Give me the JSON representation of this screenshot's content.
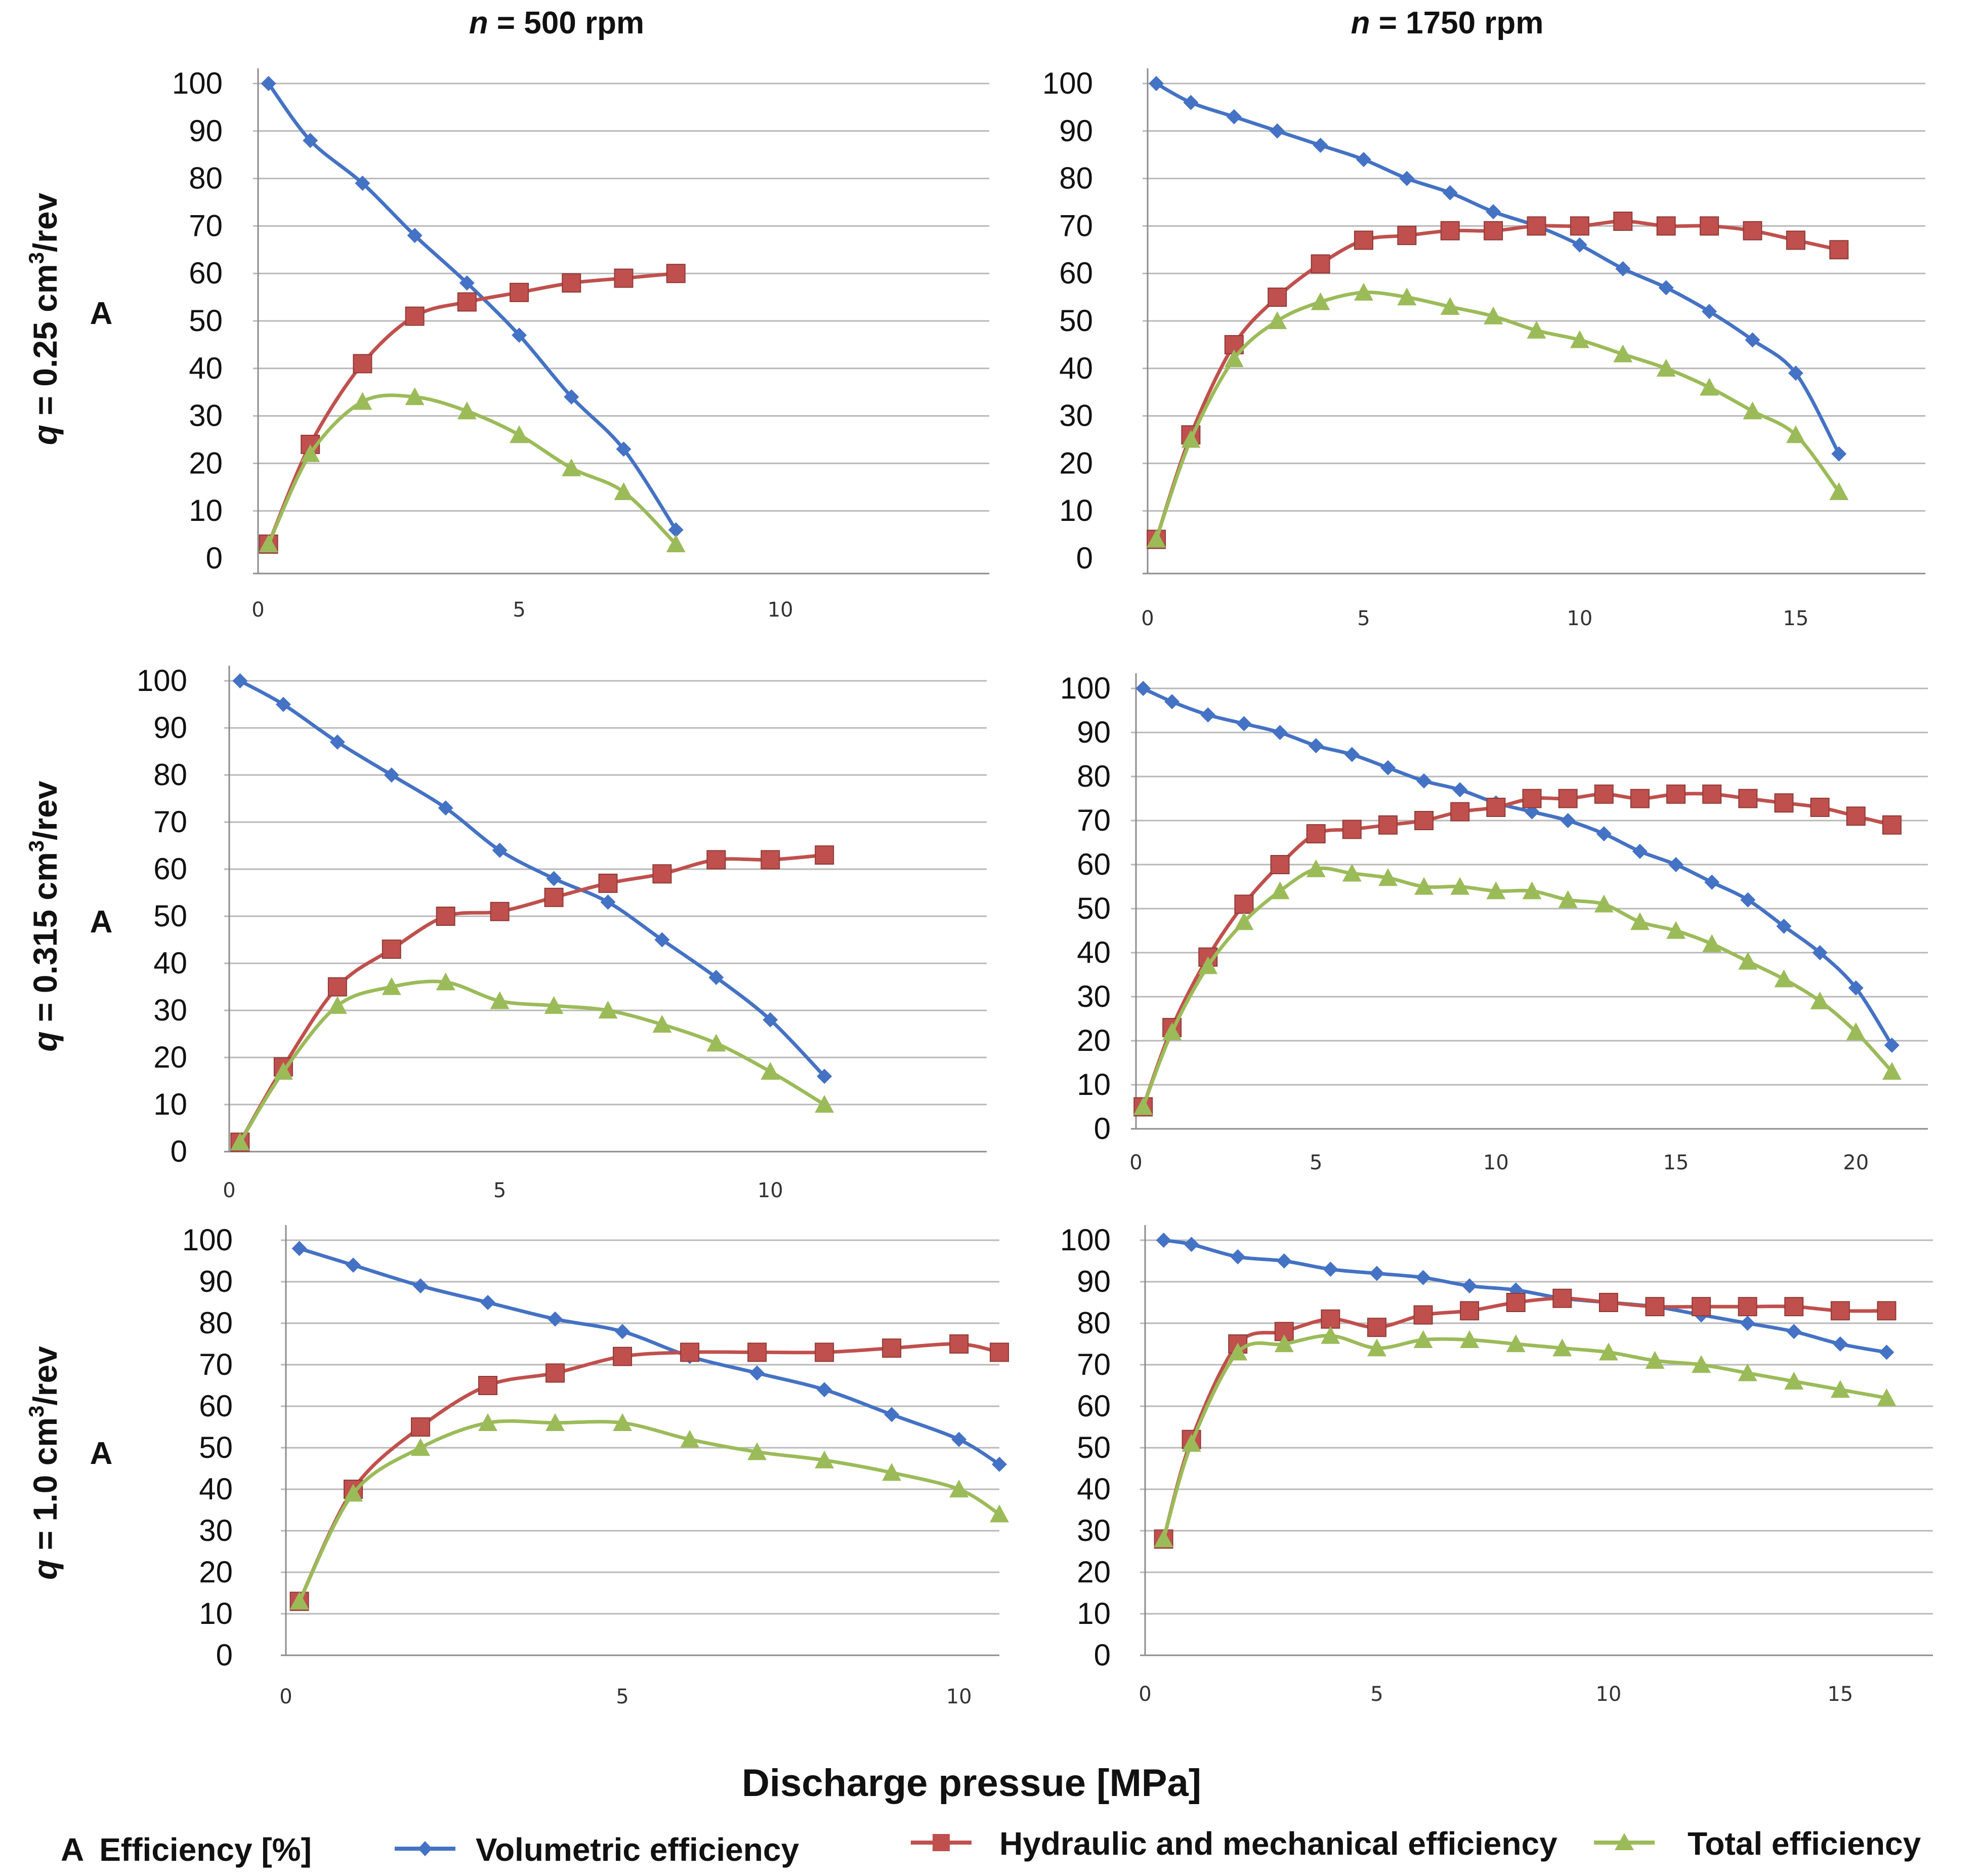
{
  "figure": {
    "col_titles": [
      {
        "var": "n",
        "rest": " = 500 rpm"
      },
      {
        "var": "n",
        "rest": " = 1750 rpm"
      }
    ],
    "row_titles": [
      {
        "var": "q",
        "rest": " = 0.25 cm",
        "sup": "3",
        "unit": "/rev"
      },
      {
        "var": "q",
        "rest": " = 0.315 cm",
        "sup": "3",
        "unit": "/rev"
      },
      {
        "var": "q",
        "rest": " = 1.0 cm",
        "sup": "3",
        "unit": "/rev"
      }
    ],
    "row_axis_letter": "A",
    "xlabel": "Discharge pressue [MPa]",
    "legend": {
      "axis_key": "A",
      "axis_meaning": "Efficiency [%]",
      "series": [
        "Volumetric efficiency",
        "Hydraulic and mechanical efficiency",
        "Total efficiency"
      ]
    },
    "colors": {
      "volumetric": "#4472c4",
      "hydraulic": "#c0504d",
      "total": "#9bbb59"
    },
    "markers": {
      "volumetric": "diamond",
      "hydraulic": "square",
      "total": "triangle"
    }
  },
  "chart_data": [
    {
      "type": "line",
      "row": 0,
      "col": 0,
      "xlim": [
        0,
        14
      ],
      "ylim": [
        0,
        100
      ],
      "xticks": [
        0,
        5,
        10
      ],
      "yticks": [
        0,
        10,
        20,
        30,
        40,
        50,
        60,
        70,
        80,
        90,
        100
      ],
      "series": [
        {
          "key": "volumetric",
          "x": [
            0.2,
            1,
            2,
            3,
            4,
            5,
            6,
            7,
            8
          ],
          "y": [
            100,
            88,
            79,
            68,
            58,
            47,
            34,
            23,
            6
          ]
        },
        {
          "key": "hydraulic",
          "x": [
            0.2,
            1,
            2,
            3,
            4,
            5,
            6,
            7,
            8
          ],
          "y": [
            3,
            24,
            41,
            51,
            54,
            56,
            58,
            59,
            60
          ]
        },
        {
          "key": "total",
          "x": [
            0.2,
            1,
            2,
            3,
            4,
            5,
            6,
            7,
            8
          ],
          "y": [
            3,
            22,
            33,
            34,
            31,
            26,
            19,
            14,
            3
          ]
        }
      ]
    },
    {
      "type": "line",
      "row": 0,
      "col": 1,
      "xlim": [
        0,
        18
      ],
      "ylim": [
        0,
        100
      ],
      "xticks": [
        0,
        5,
        10,
        15
      ],
      "yticks": [
        0,
        10,
        20,
        30,
        40,
        50,
        60,
        70,
        80,
        90,
        100
      ],
      "series": [
        {
          "key": "volumetric",
          "x": [
            0.2,
            1,
            2,
            3,
            4,
            5,
            6,
            7,
            8,
            9,
            10,
            11,
            12,
            13,
            14,
            15,
            16
          ],
          "y": [
            100,
            96,
            93,
            90,
            87,
            84,
            80,
            77,
            73,
            70,
            66,
            61,
            57,
            52,
            46,
            39,
            22
          ]
        },
        {
          "key": "hydraulic",
          "x": [
            0.2,
            1,
            2,
            3,
            4,
            5,
            6,
            7,
            8,
            9,
            10,
            11,
            12,
            13,
            14,
            15,
            16
          ],
          "y": [
            4,
            26,
            45,
            55,
            62,
            67,
            68,
            69,
            69,
            70,
            70,
            71,
            70,
            70,
            69,
            67,
            65
          ]
        },
        {
          "key": "total",
          "x": [
            0.2,
            1,
            2,
            3,
            4,
            5,
            6,
            7,
            8,
            9,
            10,
            11,
            12,
            13,
            14,
            15,
            16
          ],
          "y": [
            4,
            25,
            42,
            50,
            54,
            56,
            55,
            53,
            51,
            48,
            46,
            43,
            40,
            36,
            31,
            26,
            14
          ]
        }
      ]
    },
    {
      "type": "line",
      "row": 1,
      "col": 0,
      "xlim": [
        0,
        14
      ],
      "ylim": [
        0,
        100
      ],
      "xticks": [
        0,
        5,
        10
      ],
      "yticks": [
        0,
        10,
        20,
        30,
        40,
        50,
        60,
        70,
        80,
        90,
        100
      ],
      "series": [
        {
          "key": "volumetric",
          "x": [
            0.2,
            1,
            2,
            3,
            4,
            5,
            6,
            7,
            8,
            9,
            10,
            11
          ],
          "y": [
            100,
            95,
            87,
            80,
            73,
            64,
            58,
            53,
            45,
            37,
            28,
            16
          ]
        },
        {
          "key": "hydraulic",
          "x": [
            0.2,
            1,
            2,
            3,
            4,
            5,
            6,
            7,
            8,
            9,
            10,
            11
          ],
          "y": [
            2,
            18,
            35,
            43,
            50,
            51,
            54,
            57,
            59,
            62,
            62,
            63
          ]
        },
        {
          "key": "total",
          "x": [
            0.2,
            1,
            2,
            3,
            4,
            5,
            6,
            7,
            8,
            9,
            10,
            11
          ],
          "y": [
            2,
            17,
            31,
            35,
            36,
            32,
            31,
            30,
            27,
            23,
            17,
            10
          ]
        }
      ]
    },
    {
      "type": "line",
      "row": 1,
      "col": 1,
      "xlim": [
        0,
        22
      ],
      "ylim": [
        0,
        100
      ],
      "xticks": [
        0,
        5,
        10,
        15,
        20
      ],
      "yticks": [
        0,
        10,
        20,
        30,
        40,
        50,
        60,
        70,
        80,
        90,
        100
      ],
      "series": [
        {
          "key": "volumetric",
          "x": [
            0.2,
            1,
            2,
            3,
            4,
            5,
            6,
            7,
            8,
            9,
            10,
            11,
            12,
            13,
            14,
            15,
            16,
            17,
            18,
            19,
            20,
            21
          ],
          "y": [
            100,
            97,
            94,
            92,
            90,
            87,
            85,
            82,
            79,
            77,
            74,
            72,
            70,
            67,
            63,
            60,
            56,
            52,
            46,
            40,
            32,
            19
          ]
        },
        {
          "key": "hydraulic",
          "x": [
            0.2,
            1,
            2,
            3,
            4,
            5,
            6,
            7,
            8,
            9,
            10,
            11,
            12,
            13,
            14,
            15,
            16,
            17,
            18,
            19,
            20,
            21
          ],
          "y": [
            5,
            23,
            39,
            51,
            60,
            67,
            68,
            69,
            70,
            72,
            73,
            75,
            75,
            76,
            75,
            76,
            76,
            75,
            74,
            73,
            71,
            69
          ]
        },
        {
          "key": "total",
          "x": [
            0.2,
            1,
            2,
            3,
            4,
            5,
            6,
            7,
            8,
            9,
            10,
            11,
            12,
            13,
            14,
            15,
            16,
            17,
            18,
            19,
            20,
            21
          ],
          "y": [
            5,
            22,
            37,
            47,
            54,
            59,
            58,
            57,
            55,
            55,
            54,
            54,
            52,
            51,
            47,
            45,
            42,
            38,
            34,
            29,
            22,
            13
          ]
        }
      ]
    },
    {
      "type": "line",
      "row": 2,
      "col": 0,
      "xlim": [
        0,
        10.6
      ],
      "ylim": [
        0,
        100
      ],
      "xticks": [
        0,
        5,
        10
      ],
      "yticks": [
        0,
        10,
        20,
        30,
        40,
        50,
        60,
        70,
        80,
        90,
        100
      ],
      "series": [
        {
          "key": "volumetric",
          "x": [
            0.2,
            1,
            2,
            3,
            4,
            5,
            6,
            7,
            8,
            9,
            10,
            10.6
          ],
          "y": [
            98,
            94,
            89,
            85,
            81,
            78,
            72,
            68,
            64,
            58,
            52,
            46
          ]
        },
        {
          "key": "hydraulic",
          "x": [
            0.2,
            1,
            2,
            3,
            4,
            5,
            6,
            7,
            8,
            9,
            10,
            10.6
          ],
          "y": [
            13,
            40,
            55,
            65,
            68,
            72,
            73,
            73,
            73,
            74,
            75,
            73
          ]
        },
        {
          "key": "total",
          "x": [
            0.2,
            1,
            2,
            3,
            4,
            5,
            6,
            7,
            8,
            9,
            10,
            10.6
          ],
          "y": [
            13,
            39,
            50,
            56,
            56,
            56,
            52,
            49,
            47,
            44,
            40,
            34
          ]
        }
      ]
    },
    {
      "type": "line",
      "row": 2,
      "col": 1,
      "xlim": [
        0,
        17
      ],
      "ylim": [
        0,
        100
      ],
      "xticks": [
        0,
        5,
        10,
        15
      ],
      "yticks": [
        0,
        10,
        20,
        30,
        40,
        50,
        60,
        70,
        80,
        90,
        100
      ],
      "series": [
        {
          "key": "volumetric",
          "x": [
            0.4,
            1,
            2,
            3,
            4,
            5,
            6,
            7,
            8,
            9,
            10,
            11,
            12,
            13,
            14,
            15,
            16
          ],
          "y": [
            100,
            99,
            96,
            95,
            93,
            92,
            91,
            89,
            88,
            86,
            85,
            84,
            82,
            80,
            78,
            75,
            73
          ]
        },
        {
          "key": "hydraulic",
          "x": [
            0.4,
            1,
            2,
            3,
            4,
            5,
            6,
            7,
            8,
            9,
            10,
            11,
            12,
            13,
            14,
            15,
            16
          ],
          "y": [
            28,
            52,
            75,
            78,
            81,
            79,
            82,
            83,
            85,
            86,
            85,
            84,
            84,
            84,
            84,
            83,
            83
          ]
        },
        {
          "key": "total",
          "x": [
            0.4,
            1,
            2,
            3,
            4,
            5,
            6,
            7,
            8,
            9,
            10,
            11,
            12,
            13,
            14,
            15,
            16
          ],
          "y": [
            28,
            51,
            73,
            75,
            77,
            74,
            76,
            76,
            75,
            74,
            73,
            71,
            70,
            68,
            66,
            64,
            62
          ]
        }
      ]
    }
  ]
}
